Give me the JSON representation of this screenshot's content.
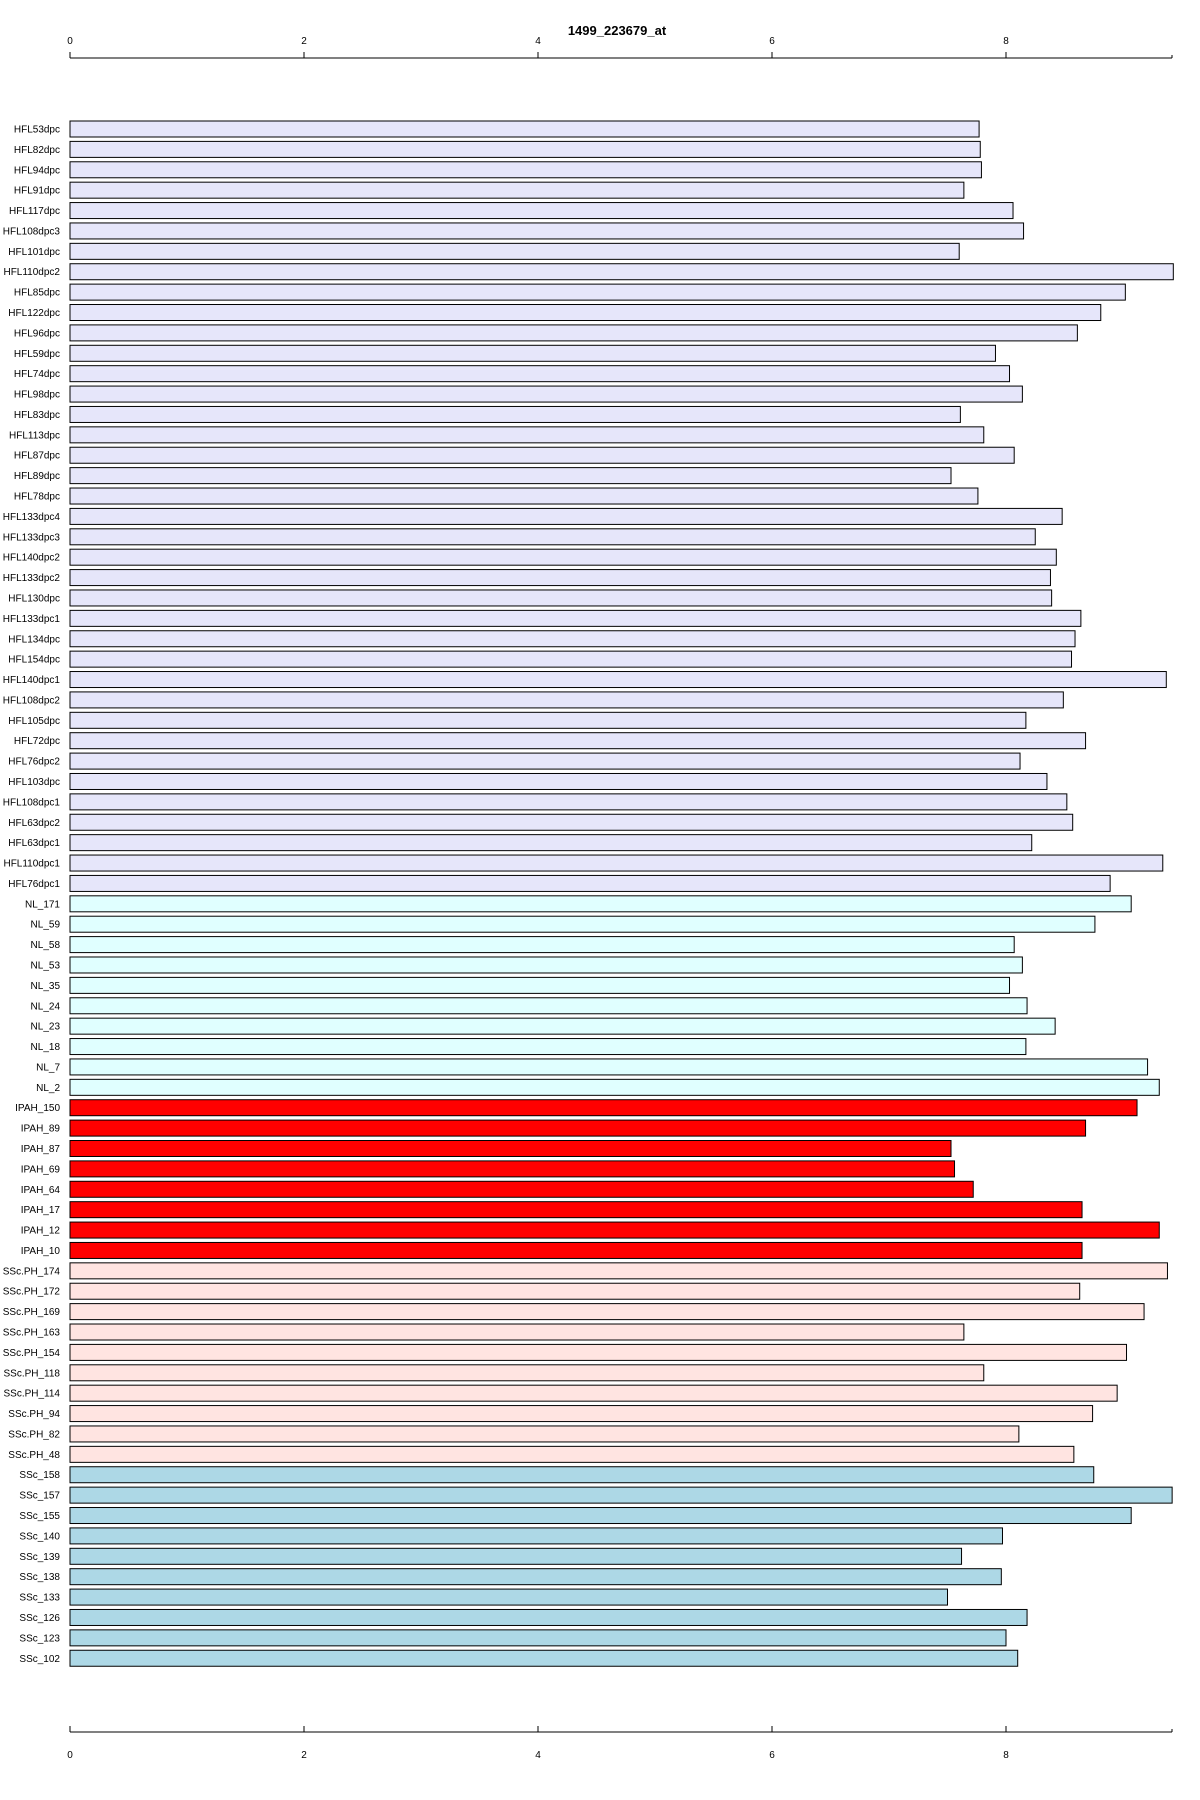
{
  "chart_data": {
    "type": "bar",
    "orientation": "horizontal",
    "title": "1499_223679_at",
    "xlabel": "",
    "ylabel": "",
    "xlim": [
      0,
      9.4
    ],
    "x_ticks": [
      0,
      2,
      4,
      6,
      8
    ],
    "axes": [
      "top",
      "bottom"
    ],
    "grid": false,
    "categories": [
      "HFL53dpc",
      "HFL82dpc",
      "HFL94dpc",
      "HFL91dpc",
      "HFL117dpc",
      "HFL108dpc3",
      "HFL101dpc",
      "HFL110dpc2",
      "HFL85dpc",
      "HFL122dpc",
      "HFL96dpc",
      "HFL59dpc",
      "HFL74dpc",
      "HFL98dpc",
      "HFL83dpc",
      "HFL113dpc",
      "HFL87dpc",
      "HFL89dpc",
      "HFL78dpc",
      "HFL133dpc4",
      "HFL133dpc3",
      "HFL140dpc2",
      "HFL133dpc2",
      "HFL130dpc",
      "HFL133dpc1",
      "HFL134dpc",
      "HFL154dpc",
      "HFL140dpc1",
      "HFL108dpc2",
      "HFL105dpc",
      "HFL72dpc",
      "HFL76dpc2",
      "HFL103dpc",
      "HFL108dpc1",
      "HFL63dpc2",
      "HFL63dpc1",
      "HFL110dpc1",
      "HFL76dpc1",
      "NL_171",
      "NL_59",
      "NL_58",
      "NL_53",
      "NL_35",
      "NL_24",
      "NL_23",
      "NL_18",
      "NL_7",
      "NL_2",
      "IPAH_150",
      "IPAH_89",
      "IPAH_87",
      "IPAH_69",
      "IPAH_64",
      "IPAH_17",
      "IPAH_12",
      "IPAH_10",
      "SSc.PH_174",
      "SSc.PH_172",
      "SSc.PH_169",
      "SSc.PH_163",
      "SSc.PH_154",
      "SSc.PH_118",
      "SSc.PH_114",
      "SSc.PH_94",
      "SSc.PH_82",
      "SSc.PH_48",
      "SSc_158",
      "SSc_157",
      "SSc_155",
      "SSc_140",
      "SSc_139",
      "SSc_138",
      "SSc_133",
      "SSc_126",
      "SSc_123",
      "SSc_102"
    ],
    "values": [
      7.77,
      7.78,
      7.79,
      7.64,
      8.06,
      8.15,
      7.6,
      9.43,
      9.02,
      8.81,
      8.61,
      7.91,
      8.03,
      8.14,
      7.61,
      7.81,
      8.07,
      7.53,
      7.76,
      8.48,
      8.25,
      8.43,
      8.38,
      8.39,
      8.64,
      8.59,
      8.56,
      9.37,
      8.49,
      8.17,
      8.68,
      8.12,
      8.35,
      8.52,
      8.57,
      8.22,
      9.34,
      8.89,
      9.07,
      8.76,
      8.07,
      8.14,
      8.03,
      8.18,
      8.42,
      8.17,
      9.21,
      9.31,
      9.12,
      8.68,
      7.53,
      7.56,
      7.72,
      8.65,
      9.31,
      8.65,
      9.38,
      8.63,
      9.18,
      7.64,
      9.03,
      7.81,
      8.95,
      8.74,
      8.11,
      8.58,
      8.75,
      9.42,
      9.07,
      7.97,
      7.62,
      7.96,
      7.5,
      8.18,
      8.0,
      8.1
    ],
    "groups": [
      {
        "prefix": "HFL",
        "color": "#e6e6fa"
      },
      {
        "prefix": "NL_",
        "color": "#e0ffff"
      },
      {
        "prefix": "IPAH_",
        "color": "#ff0000"
      },
      {
        "prefix": "SSc.PH_",
        "color": "#ffe4e1"
      },
      {
        "prefix": "SSc_",
        "color": "#add8e6"
      }
    ],
    "bar_stroke": "#000000"
  }
}
